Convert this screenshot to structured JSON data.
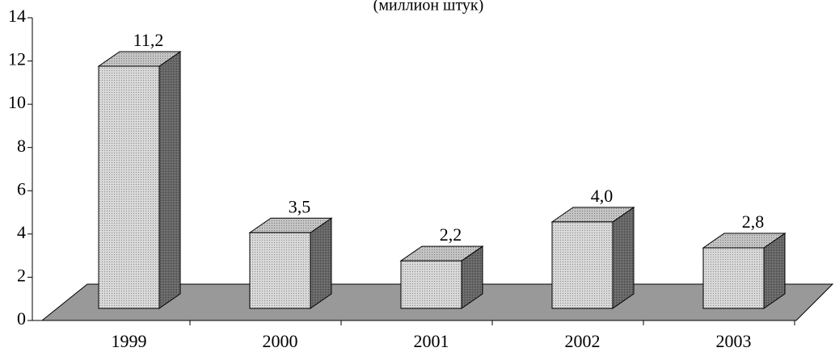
{
  "chart_data": {
    "type": "bar3d",
    "subtitle": "(миллион штук)",
    "categories": [
      "1999",
      "2000",
      "2001",
      "2002",
      "2003"
    ],
    "values": [
      11.2,
      3.5,
      2.2,
      4.0,
      2.8
    ],
    "value_labels": [
      "11,2",
      "3,5",
      "2,2",
      "4,0",
      "2,8"
    ],
    "ylim": [
      0,
      14
    ],
    "yticks": [
      0,
      2,
      4,
      6,
      8,
      10,
      12,
      14
    ]
  }
}
